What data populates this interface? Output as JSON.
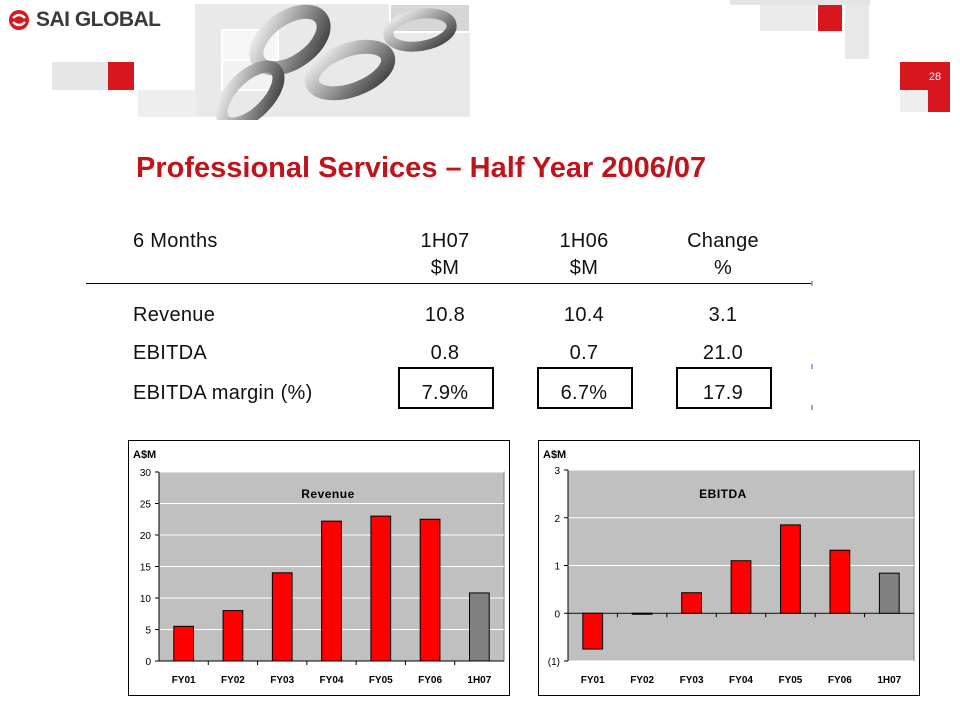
{
  "header": {
    "brand": "SAI GLOBAL",
    "page_number": "28",
    "accent_color": "#d8161e"
  },
  "title": "Professional Services – Half Year 2006/07",
  "table": {
    "headers": [
      {
        "line1": "6 Months",
        "line2": ""
      },
      {
        "line1": "1H07",
        "line2": "$M"
      },
      {
        "line1": "1H06",
        "line2": "$M"
      },
      {
        "line1": "Change",
        "line2": "%"
      }
    ],
    "rows": [
      {
        "label": "Revenue",
        "values": [
          "10.8",
          "10.4",
          "3.1"
        ]
      },
      {
        "label": "EBITDA",
        "values": [
          "0.8",
          "0.7",
          "21.0"
        ]
      },
      {
        "label": "EBITDA margin (%)",
        "values": [
          "7.9%",
          "6.7%",
          "17.9"
        ]
      }
    ]
  },
  "chart_data": [
    {
      "type": "bar",
      "title": "Revenue",
      "ylabel": "A$M",
      "categories": [
        "FY01",
        "FY02",
        "FY03",
        "FY04",
        "FY05",
        "FY06",
        "1H07"
      ],
      "values": [
        5.5,
        8.0,
        14.0,
        22.2,
        23.0,
        22.5,
        10.8
      ],
      "ylim": [
        0,
        30
      ],
      "yticks": [
        0,
        5,
        10,
        15,
        20,
        25,
        30
      ],
      "ytick_labels": [
        "0",
        "5",
        "10",
        "15",
        "20",
        "25",
        "30"
      ],
      "grid": true,
      "colors": {
        "bar": "#ff0000",
        "highlight": "#808080",
        "plot_bg": "#c0c0c0"
      },
      "highlight_index": 6
    },
    {
      "type": "bar",
      "title": "EBITDA",
      "ylabel": "A$M",
      "categories": [
        "FY01",
        "FY02",
        "FY03",
        "FY04",
        "FY05",
        "FY06",
        "1H07"
      ],
      "values": [
        -0.75,
        -0.02,
        0.43,
        1.1,
        1.85,
        1.32,
        0.84
      ],
      "ylim": [
        -1,
        3
      ],
      "yticks": [
        -1,
        0,
        1,
        2,
        3
      ],
      "ytick_labels": [
        "(1)",
        "0",
        "1",
        "2",
        "3"
      ],
      "grid": true,
      "colors": {
        "bar": "#ff0000",
        "highlight": "#808080",
        "plot_bg": "#c0c0c0"
      },
      "highlight_index": 6
    }
  ]
}
